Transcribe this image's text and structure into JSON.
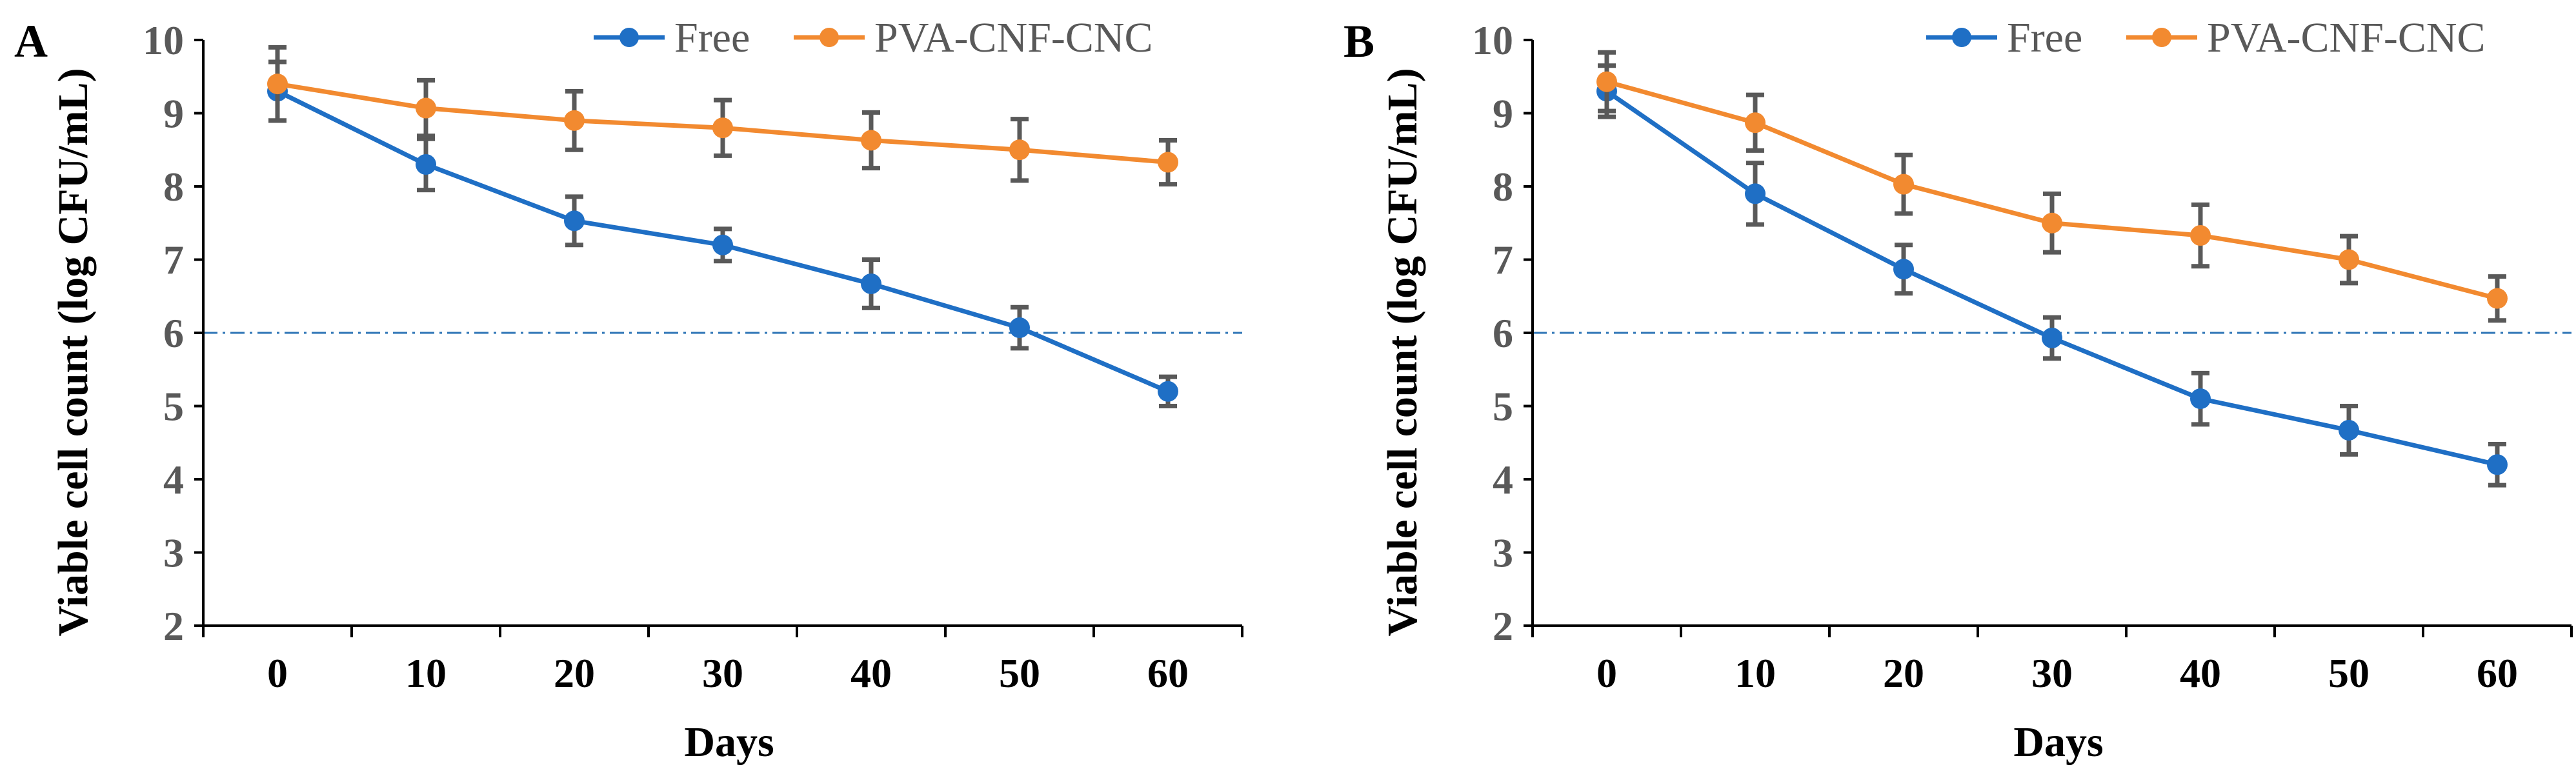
{
  "chart_data": [
    {
      "type": "line",
      "panel": "A",
      "xlabel": "Days",
      "ylabel": "Viable cell count (log CFU/mL)",
      "ylim": [
        2,
        10
      ],
      "yticks": [
        "2",
        "3",
        "4",
        "5",
        "6",
        "7",
        "8",
        "9",
        "10"
      ],
      "categories": [
        "0",
        "10",
        "20",
        "30",
        "40",
        "50",
        "60"
      ],
      "threshold": 6,
      "series": [
        {
          "name": "Free",
          "color": "#1f6fc5",
          "values": [
            9.3,
            8.3,
            7.53,
            7.2,
            6.67,
            6.07,
            5.2
          ],
          "errors": [
            0.4,
            0.35,
            0.33,
            0.22,
            0.33,
            0.28,
            0.2
          ]
        },
        {
          "name": "PVA-CNF-CNC",
          "color": "#f28a30",
          "values": [
            9.4,
            9.07,
            8.9,
            8.8,
            8.63,
            8.5,
            8.33
          ],
          "errors": [
            0.5,
            0.38,
            0.4,
            0.38,
            0.38,
            0.42,
            0.3
          ]
        }
      ]
    },
    {
      "type": "line",
      "panel": "B",
      "xlabel": "Days",
      "ylabel": "Viable cell count (log CFU/mL)",
      "ylim": [
        2,
        10
      ],
      "yticks": [
        "2",
        "3",
        "4",
        "5",
        "6",
        "7",
        "8",
        "9",
        "10"
      ],
      "categories": [
        "0",
        "10",
        "20",
        "30",
        "40",
        "50",
        "60"
      ],
      "threshold": 6,
      "series": [
        {
          "name": "Free",
          "color": "#1f6fc5",
          "values": [
            9.3,
            7.9,
            6.87,
            5.93,
            5.1,
            4.67,
            4.2
          ],
          "errors": [
            0.35,
            0.42,
            0.33,
            0.28,
            0.35,
            0.33,
            0.28
          ]
        },
        {
          "name": "PVA-CNF-CNC",
          "color": "#f28a30",
          "values": [
            9.43,
            8.87,
            8.03,
            7.5,
            7.33,
            7.0,
            6.47
          ],
          "errors": [
            0.4,
            0.38,
            0.4,
            0.4,
            0.42,
            0.32,
            0.3
          ]
        }
      ]
    }
  ]
}
